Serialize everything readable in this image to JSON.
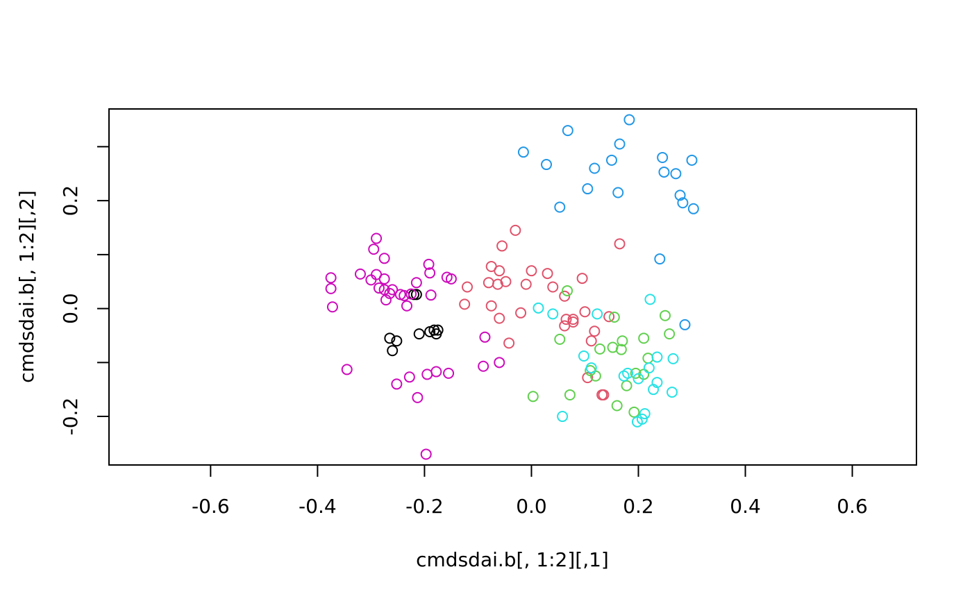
{
  "chart_data": {
    "type": "scatter",
    "xlabel": "cmdsdai.b[, 1:2][,1]",
    "ylabel": "cmdsdai.b[, 1:2][,2]",
    "xlim": [
      -0.79,
      0.72
    ],
    "ylim": [
      -0.29,
      0.37
    ],
    "x_ticks": [
      -0.6,
      -0.4,
      -0.2,
      0.0,
      0.2,
      0.4,
      0.6
    ],
    "x_tick_labels": [
      "-0.6",
      "-0.4",
      "-0.2",
      "0.0",
      "0.2",
      "0.4",
      "0.6"
    ],
    "y_ticks": [
      -0.2,
      -0.1,
      0.0,
      0.1,
      0.2,
      0.3
    ],
    "y_tick_labels": [
      "-0.2",
      "",
      "0.0",
      "",
      "0.2",
      ""
    ],
    "grid": false,
    "legend": "none",
    "marker": "open-circle",
    "series": [
      {
        "color": "#000000",
        "points": [
          [
            -0.22,
            0.026
          ],
          [
            -0.215,
            0.026
          ],
          [
            -0.265,
            -0.055
          ],
          [
            -0.252,
            -0.06
          ],
          [
            -0.26,
            -0.078
          ],
          [
            -0.21,
            -0.047
          ],
          [
            -0.19,
            -0.043
          ],
          [
            -0.182,
            -0.04
          ],
          [
            -0.175,
            -0.04
          ],
          [
            -0.178,
            -0.047
          ]
        ]
      },
      {
        "color": "#DF536B",
        "points": [
          [
            -0.03,
            0.145
          ],
          [
            -0.055,
            0.116
          ],
          [
            0.165,
            0.12
          ],
          [
            -0.075,
            0.078
          ],
          [
            -0.06,
            0.07
          ],
          [
            0.0,
            0.07
          ],
          [
            0.03,
            0.065
          ],
          [
            -0.12,
            0.04
          ],
          [
            -0.08,
            0.048
          ],
          [
            -0.063,
            0.045
          ],
          [
            -0.048,
            0.05
          ],
          [
            -0.01,
            0.045
          ],
          [
            0.04,
            0.04
          ],
          [
            0.095,
            0.056
          ],
          [
            0.062,
            0.023
          ],
          [
            -0.125,
            0.008
          ],
          [
            -0.075,
            0.005
          ],
          [
            -0.02,
            -0.008
          ],
          [
            0.1,
            -0.006
          ],
          [
            0.145,
            -0.015
          ],
          [
            -0.06,
            -0.018
          ],
          [
            0.065,
            -0.02
          ],
          [
            0.078,
            -0.02
          ],
          [
            0.078,
            -0.025
          ],
          [
            0.062,
            -0.032
          ],
          [
            0.118,
            -0.042
          ],
          [
            -0.042,
            -0.064
          ],
          [
            0.112,
            -0.06
          ],
          [
            0.105,
            -0.128
          ],
          [
            0.132,
            -0.16
          ],
          [
            0.135,
            -0.16
          ]
        ]
      },
      {
        "color": "#61D04F",
        "points": [
          [
            0.067,
            0.033
          ],
          [
            0.155,
            -0.016
          ],
          [
            0.25,
            -0.013
          ],
          [
            0.258,
            -0.047
          ],
          [
            0.053,
            -0.057
          ],
          [
            0.21,
            -0.055
          ],
          [
            0.17,
            -0.06
          ],
          [
            0.152,
            -0.072
          ],
          [
            0.128,
            -0.075
          ],
          [
            0.168,
            -0.076
          ],
          [
            0.218,
            -0.092
          ],
          [
            0.11,
            -0.115
          ],
          [
            0.195,
            -0.12
          ],
          [
            0.21,
            -0.122
          ],
          [
            0.12,
            -0.125
          ],
          [
            0.178,
            -0.143
          ],
          [
            0.003,
            -0.163
          ],
          [
            0.072,
            -0.16
          ],
          [
            0.16,
            -0.18
          ],
          [
            0.192,
            -0.192
          ]
        ]
      },
      {
        "color": "#2297E6",
        "points": [
          [
            0.183,
            0.35
          ],
          [
            0.068,
            0.33
          ],
          [
            0.165,
            0.305
          ],
          [
            -0.015,
            0.29
          ],
          [
            0.245,
            0.28
          ],
          [
            0.3,
            0.275
          ],
          [
            0.15,
            0.275
          ],
          [
            0.028,
            0.267
          ],
          [
            0.118,
            0.26
          ],
          [
            0.248,
            0.253
          ],
          [
            0.27,
            0.25
          ],
          [
            0.105,
            0.222
          ],
          [
            0.162,
            0.215
          ],
          [
            0.278,
            0.21
          ],
          [
            0.283,
            0.196
          ],
          [
            0.053,
            0.188
          ],
          [
            0.303,
            0.185
          ],
          [
            0.24,
            0.092
          ],
          [
            0.287,
            -0.03
          ]
        ]
      },
      {
        "color": "#28E2E5",
        "points": [
          [
            0.222,
            0.017
          ],
          [
            0.013,
            0.001
          ],
          [
            0.04,
            -0.01
          ],
          [
            0.123,
            -0.01
          ],
          [
            0.098,
            -0.088
          ],
          [
            0.235,
            -0.09
          ],
          [
            0.265,
            -0.093
          ],
          [
            0.112,
            -0.11
          ],
          [
            0.22,
            -0.11
          ],
          [
            0.18,
            -0.12
          ],
          [
            0.173,
            -0.125
          ],
          [
            0.2,
            -0.13
          ],
          [
            0.235,
            -0.137
          ],
          [
            0.228,
            -0.15
          ],
          [
            0.263,
            -0.155
          ],
          [
            0.058,
            -0.2
          ],
          [
            0.212,
            -0.195
          ],
          [
            0.207,
            -0.205
          ],
          [
            0.198,
            -0.21
          ]
        ]
      },
      {
        "color": "#CD0BBC",
        "points": [
          [
            -0.29,
            0.13
          ],
          [
            -0.295,
            0.11
          ],
          [
            -0.275,
            0.093
          ],
          [
            -0.192,
            0.082
          ],
          [
            -0.19,
            0.066
          ],
          [
            -0.29,
            0.063
          ],
          [
            -0.32,
            0.064
          ],
          [
            -0.375,
            0.057
          ],
          [
            -0.3,
            0.053
          ],
          [
            -0.275,
            0.055
          ],
          [
            -0.158,
            0.058
          ],
          [
            -0.15,
            0.055
          ],
          [
            -0.215,
            0.048
          ],
          [
            -0.375,
            0.037
          ],
          [
            -0.285,
            0.038
          ],
          [
            -0.275,
            0.035
          ],
          [
            -0.26,
            0.035
          ],
          [
            -0.265,
            0.028
          ],
          [
            -0.245,
            0.026
          ],
          [
            -0.238,
            0.024
          ],
          [
            -0.225,
            0.027
          ],
          [
            -0.188,
            0.025
          ],
          [
            -0.272,
            0.016
          ],
          [
            -0.233,
            0.005
          ],
          [
            -0.372,
            0.003
          ],
          [
            -0.087,
            -0.053
          ],
          [
            -0.345,
            -0.113
          ],
          [
            -0.09,
            -0.107
          ],
          [
            -0.06,
            -0.1
          ],
          [
            -0.178,
            -0.117
          ],
          [
            -0.155,
            -0.12
          ],
          [
            -0.195,
            -0.122
          ],
          [
            -0.228,
            -0.127
          ],
          [
            -0.252,
            -0.14
          ],
          [
            -0.213,
            -0.165
          ],
          [
            -0.197,
            -0.27
          ]
        ]
      }
    ]
  }
}
